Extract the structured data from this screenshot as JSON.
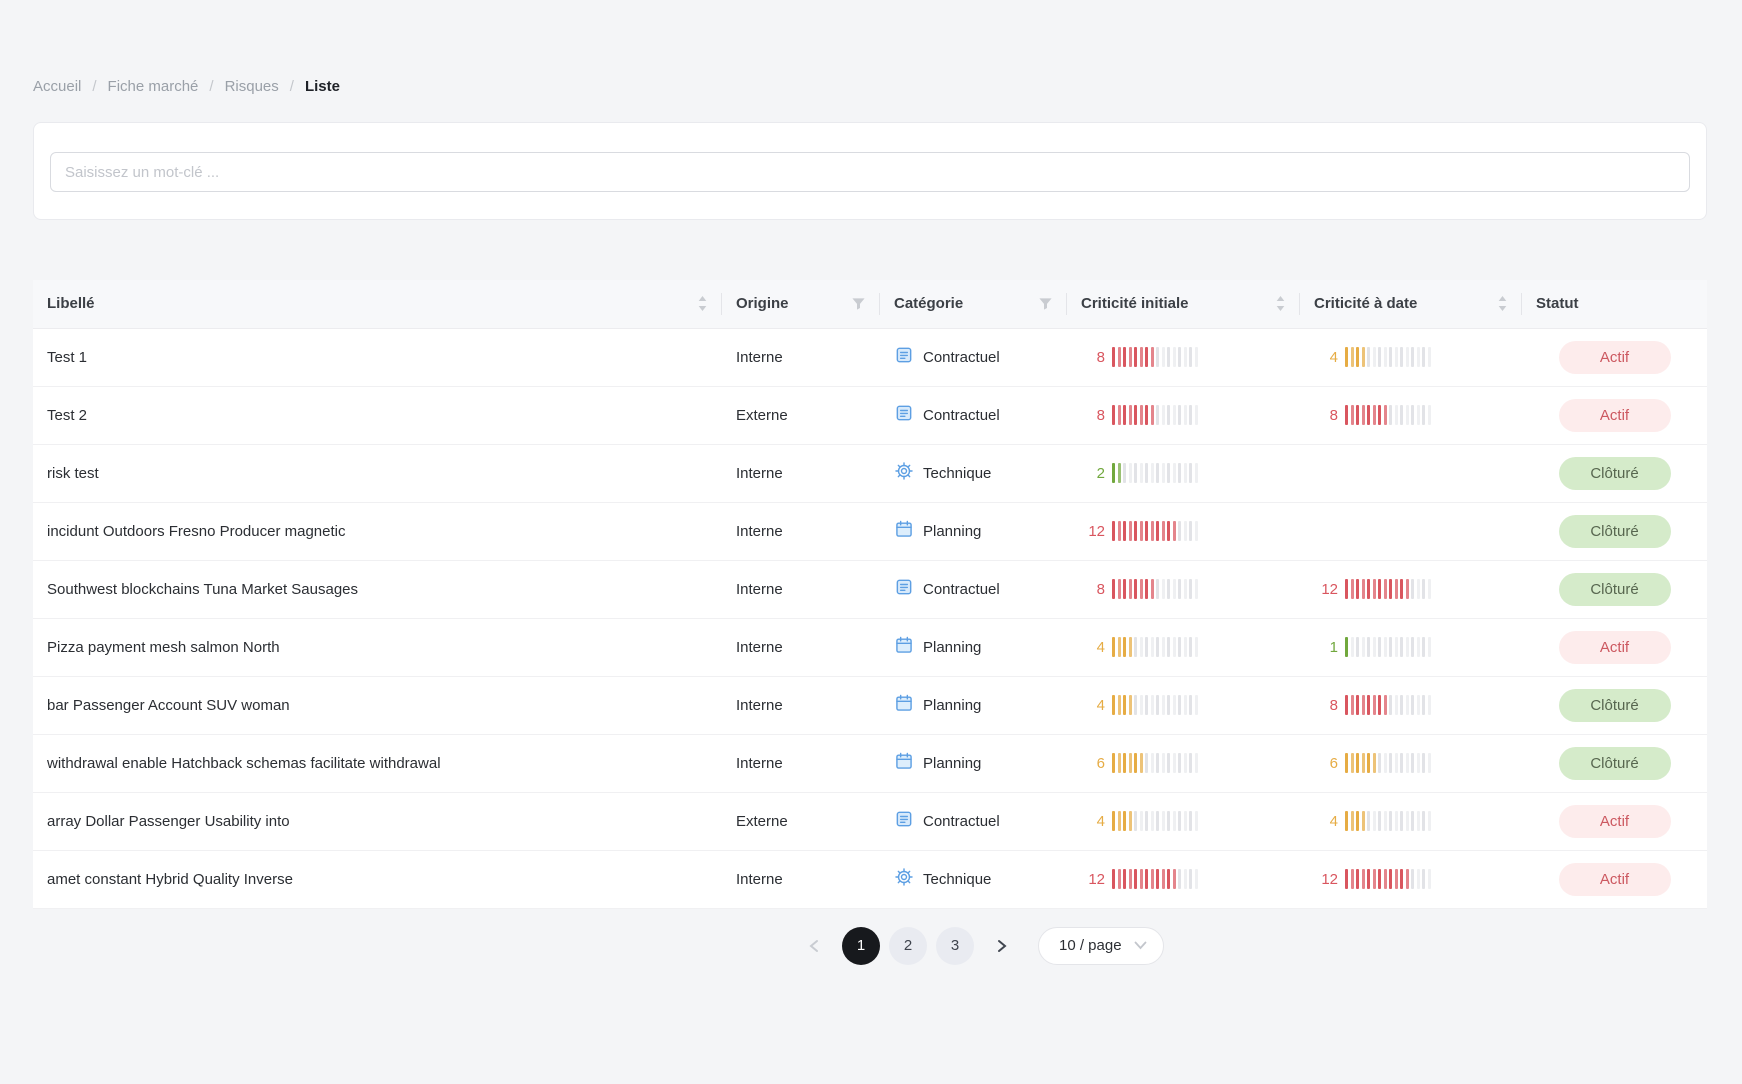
{
  "breadcrumb": {
    "separator": "/",
    "items": [
      {
        "label": "Accueil",
        "current": false
      },
      {
        "label": "Fiche marché",
        "current": false
      },
      {
        "label": "Risques",
        "current": false
      },
      {
        "label": "Liste",
        "current": true
      }
    ]
  },
  "search": {
    "placeholder": "Saisissez un mot-clé ..."
  },
  "table": {
    "columns": [
      {
        "key": "libelle",
        "label": "Libellé",
        "control": "sorter"
      },
      {
        "key": "origine",
        "label": "Origine",
        "control": "filter"
      },
      {
        "key": "categorie",
        "label": "Catégorie",
        "control": "filter"
      },
      {
        "key": "criticite_initiale",
        "label": "Criticité initiale",
        "control": "sorter"
      },
      {
        "key": "criticite_a_date",
        "label": "Criticité à date",
        "control": "sorter"
      },
      {
        "key": "statut",
        "label": "Statut",
        "control": "none"
      }
    ],
    "meter_total_ticks": 16,
    "severity_colors": {
      "low": "#71a83d",
      "medium": "#e6ac44",
      "high": "#d9565f",
      "empty": "#e2e3e7"
    },
    "category_icons": {
      "Contractuel": "document-icon",
      "Technique": "gear-icon",
      "Planning": "calendar-icon"
    },
    "status_styles": {
      "Actif": {
        "bg": "#fdecec",
        "color": "#cc5860"
      },
      "Clôturé": {
        "bg": "#d5ebca",
        "color": "#57664f"
      }
    },
    "rows": [
      {
        "libelle": "Test 1",
        "origine": "Interne",
        "categorie": "Contractuel",
        "criticite_initiale": 8,
        "criticite_a_date": 4,
        "statut": "Actif"
      },
      {
        "libelle": "Test 2",
        "origine": "Externe",
        "categorie": "Contractuel",
        "criticite_initiale": 8,
        "criticite_a_date": 8,
        "statut": "Actif"
      },
      {
        "libelle": "risk test",
        "origine": "Interne",
        "categorie": "Technique",
        "criticite_initiale": 2,
        "criticite_a_date": null,
        "statut": "Clôturé"
      },
      {
        "libelle": "incidunt Outdoors Fresno Producer magnetic",
        "origine": "Interne",
        "categorie": "Planning",
        "criticite_initiale": 12,
        "criticite_a_date": null,
        "statut": "Clôturé"
      },
      {
        "libelle": "Southwest blockchains Tuna Market Sausages",
        "origine": "Interne",
        "categorie": "Contractuel",
        "criticite_initiale": 8,
        "criticite_a_date": 12,
        "statut": "Clôturé"
      },
      {
        "libelle": "Pizza payment mesh salmon North",
        "origine": "Interne",
        "categorie": "Planning",
        "criticite_initiale": 4,
        "criticite_a_date": 1,
        "statut": "Actif"
      },
      {
        "libelle": "bar Passenger Account SUV woman",
        "origine": "Interne",
        "categorie": "Planning",
        "criticite_initiale": 4,
        "criticite_a_date": 8,
        "statut": "Clôturé"
      },
      {
        "libelle": "withdrawal enable Hatchback schemas facilitate withdrawal",
        "origine": "Interne",
        "categorie": "Planning",
        "criticite_initiale": 6,
        "criticite_a_date": 6,
        "statut": "Clôturé"
      },
      {
        "libelle": "array Dollar Passenger Usability into",
        "origine": "Externe",
        "categorie": "Contractuel",
        "criticite_initiale": 4,
        "criticite_a_date": 4,
        "statut": "Actif"
      },
      {
        "libelle": "amet constant Hybrid Quality Inverse",
        "origine": "Interne",
        "categorie": "Technique",
        "criticite_initiale": 12,
        "criticite_a_date": 12,
        "statut": "Actif"
      }
    ]
  },
  "pagination": {
    "prev_enabled": false,
    "pages": [
      "1",
      "2",
      "3"
    ],
    "current": "1",
    "next_enabled": true,
    "page_size_label": "10 / page"
  }
}
